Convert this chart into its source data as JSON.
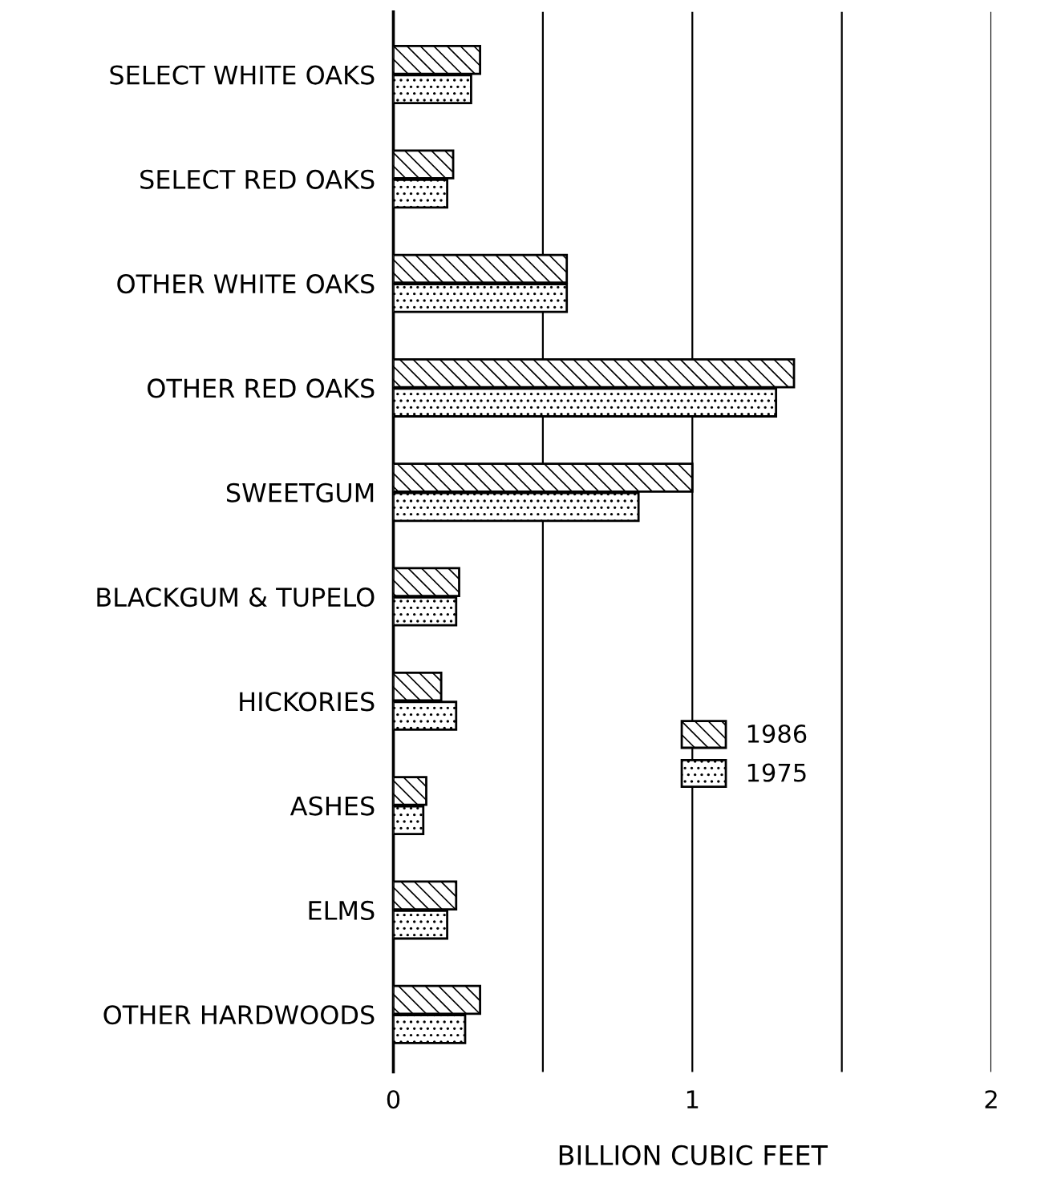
{
  "chart_data": {
    "type": "bar",
    "orientation": "horizontal",
    "xlabel": "BILLION CUBIC FEET",
    "categories": [
      "SELECT WHITE OAKS",
      "SELECT RED OAKS",
      "OTHER WHITE OAKS",
      "OTHER RED OAKS",
      "SWEETGUM",
      "BLACKGUM & TUPELO",
      "HICKORIES",
      "ASHES",
      "ELMS",
      "OTHER HARDWOODS"
    ],
    "series": [
      {
        "name": "1986",
        "color": "#000000",
        "values": [
          0.29,
          0.2,
          0.58,
          1.34,
          1.0,
          0.22,
          0.16,
          0.11,
          0.21,
          0.29
        ]
      },
      {
        "name": "1975",
        "color": "#000000",
        "values": [
          0.26,
          0.18,
          0.58,
          1.28,
          0.82,
          0.21,
          0.21,
          0.1,
          0.18,
          0.24
        ]
      }
    ],
    "xlim": [
      0,
      2
    ],
    "xticks": [
      0,
      {
        "value": 0.5,
        "label": null
      },
      1,
      {
        "value": 1.5,
        "label": null
      },
      2
    ],
    "grid": "x",
    "legend": "right"
  }
}
